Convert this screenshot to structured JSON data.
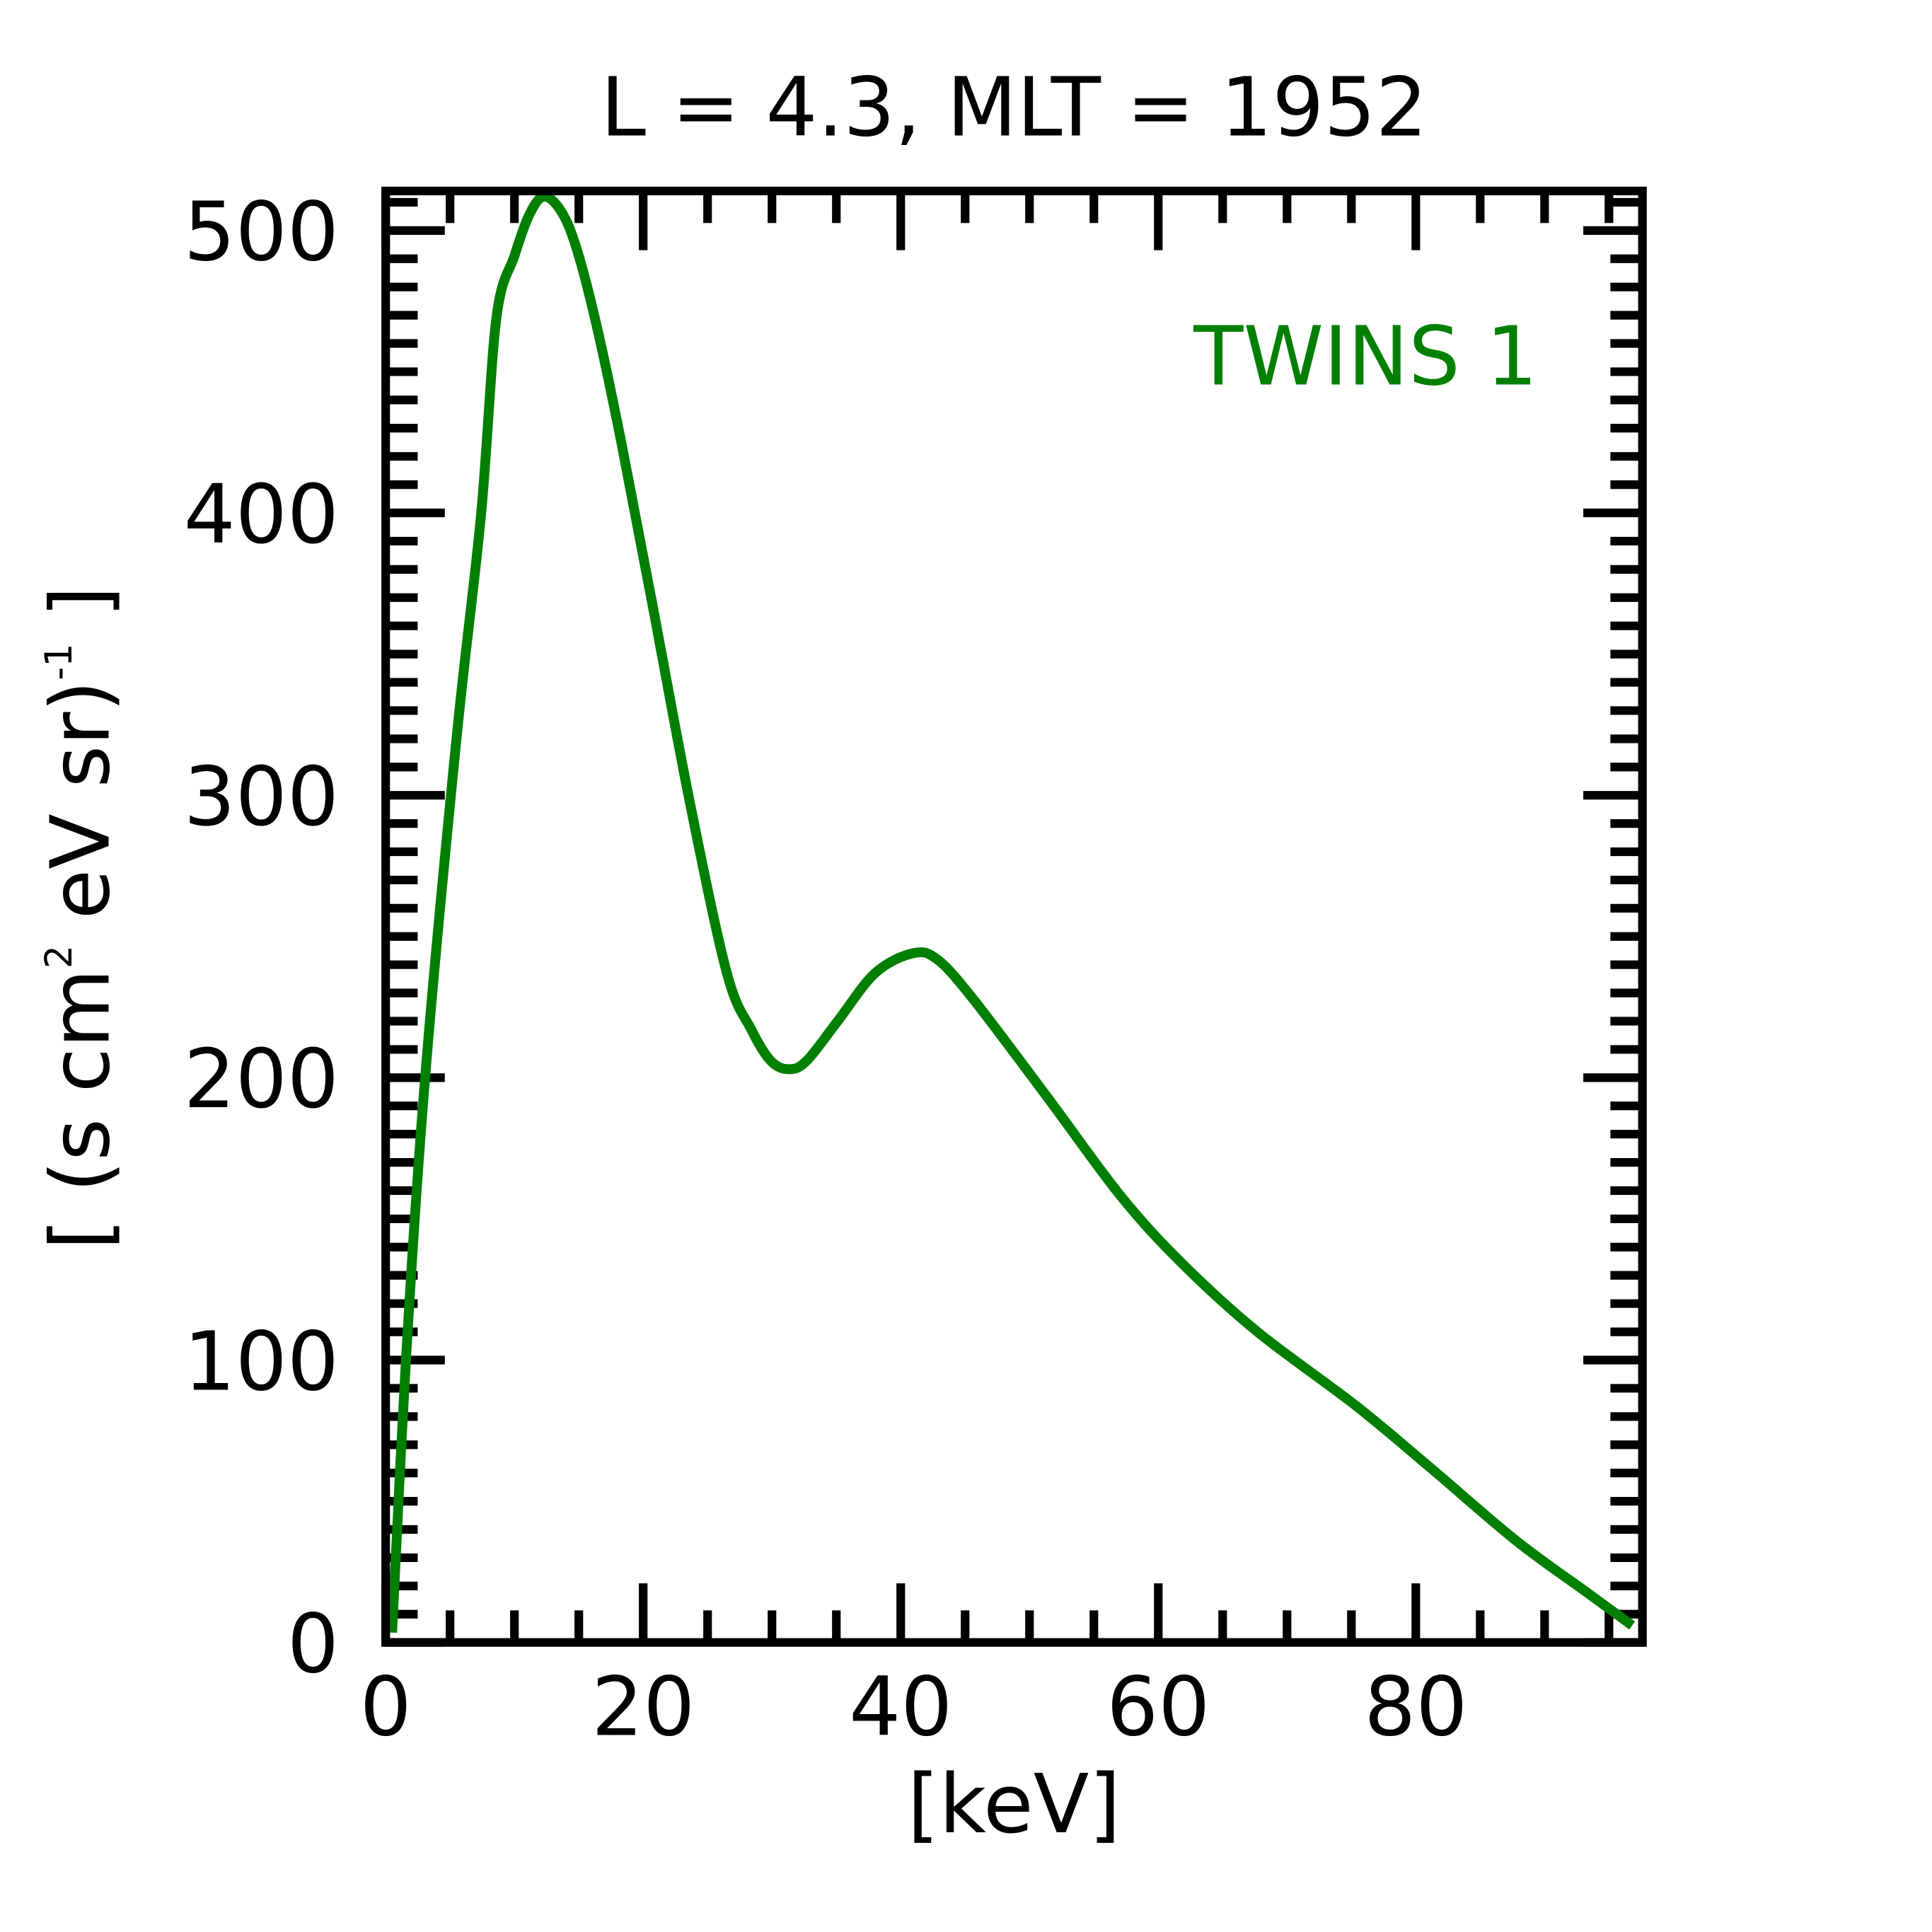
{
  "chart_data": {
    "type": "line",
    "title": "L =  4.3, MLT = 1952",
    "xlabel": "[keV]",
    "ylabel_parts": {
      "open": "[ (s cm",
      "sq": "2",
      "mid": " eV sr)",
      "exp": "-1",
      "close": " ]"
    },
    "xlim": [
      0,
      97.6
    ],
    "ylim": [
      0,
      514
    ],
    "xticks": [
      0,
      20,
      40,
      60,
      80
    ],
    "xtick_labels": [
      "0",
      "20",
      "40",
      "60",
      "80"
    ],
    "yticks": [
      0,
      100,
      200,
      300,
      400,
      500
    ],
    "ytick_labels": [
      "0",
      "100",
      "200",
      "300",
      "400",
      "500"
    ],
    "x_minor_step": 5,
    "y_minor_step": 10,
    "grid": false,
    "legend": {
      "text": "TWINS 1",
      "placement": "top-right"
    },
    "series": [
      {
        "name": "TWINS 1",
        "color": "#007f00",
        "x": [
          0.5,
          1.6,
          3.1,
          5.5,
          7.4,
          8.6,
          10.0,
          11.2,
          12.3,
          13.6,
          14.8,
          16.4,
          18.3,
          20.7,
          23.6,
          26.5,
          28.4,
          29.9,
          31.3,
          32.7,
          35.1,
          38.0,
          40.9,
          42.8,
          45.6,
          51.4,
          57.1,
          61.9,
          67.7,
          75.3,
          81.1,
          87.8,
          93.5,
          96.8
        ],
        "y": [
          3.5,
          102,
          202,
          320,
          399,
          469,
          491,
          506,
          512,
          507,
          494,
          466,
          425,
          368,
          298,
          237,
          217,
          206,
          203,
          206,
          220,
          237,
          244,
          242,
          228,
          193,
          158,
          134,
          110,
          84,
          62,
          36,
          17,
          6
        ]
      }
    ]
  }
}
